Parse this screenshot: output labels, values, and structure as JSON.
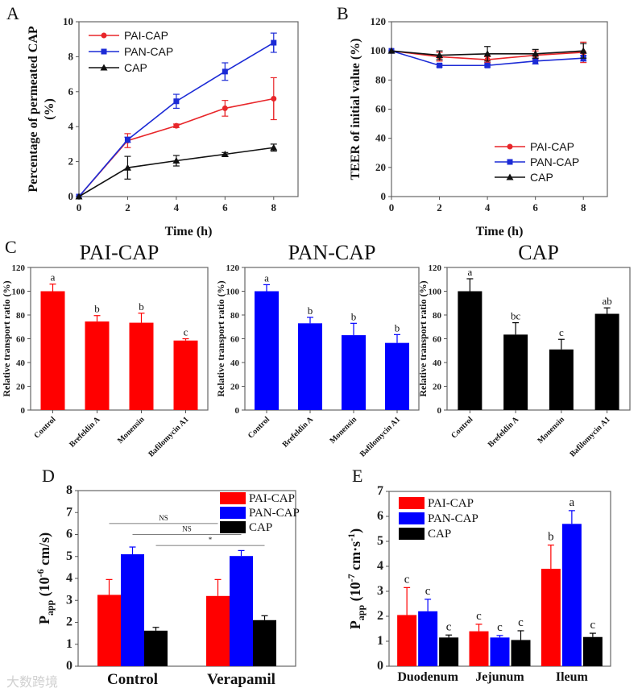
{
  "watermark": "大数跨境",
  "chart_data": [
    {
      "panel": "A",
      "type": "line",
      "xlabel": "Time (h)",
      "ylabel": [
        "Percentage of permeated CAP",
        "(%)"
      ],
      "x": [
        0,
        2,
        4,
        6,
        8
      ],
      "xticks": [
        "0",
        "2",
        "4",
        "6",
        "8"
      ],
      "xlim": [
        0,
        9
      ],
      "ylim": [
        0,
        10
      ],
      "yticks": [
        "0",
        "2",
        "4",
        "6",
        "8",
        "10"
      ],
      "ytick_values": [
        0,
        2,
        4,
        6,
        8,
        10
      ],
      "legend": "top-left",
      "series": [
        {
          "name": "PAI-CAP",
          "color": "#e8262a",
          "marker": "circle",
          "values": [
            0,
            3.2,
            4.05,
            5.05,
            5.6
          ],
          "errors": [
            0,
            0.4,
            0.1,
            0.45,
            1.2
          ]
        },
        {
          "name": "PAN-CAP",
          "color": "#1c2bd6",
          "marker": "square",
          "values": [
            0,
            3.25,
            5.45,
            7.15,
            8.8
          ],
          "errors": [
            0,
            0.15,
            0.4,
            0.5,
            0.55
          ]
        },
        {
          "name": "CAP",
          "color": "#111111",
          "marker": "triangle",
          "values": [
            0,
            1.65,
            2.05,
            2.42,
            2.8
          ],
          "errors": [
            0,
            0.65,
            0.3,
            0.1,
            0.2
          ]
        }
      ]
    },
    {
      "panel": "B",
      "type": "line",
      "xlabel": "Time (h)",
      "ylabel": [
        "TEER of initial value (%)"
      ],
      "x": [
        0,
        2,
        4,
        6,
        8
      ],
      "xticks": [
        "0",
        "2",
        "4",
        "6",
        "8"
      ],
      "xlim": [
        0,
        9
      ],
      "ylim": [
        0,
        120
      ],
      "yticks": [
        "0",
        "20",
        "40",
        "60",
        "80",
        "100",
        "120"
      ],
      "ytick_values": [
        0,
        20,
        40,
        60,
        80,
        100,
        120
      ],
      "legend": "bottom-right",
      "series": [
        {
          "name": "PAI-CAP",
          "color": "#e8262a",
          "marker": "circle",
          "values": [
            100,
            96,
            94,
            97,
            99
          ],
          "errors": [
            0,
            3,
            2,
            3,
            7
          ]
        },
        {
          "name": "PAN-CAP",
          "color": "#1c2bd6",
          "marker": "square",
          "values": [
            100,
            90,
            90,
            93,
            95
          ],
          "errors": [
            0,
            1,
            1,
            2,
            2
          ]
        },
        {
          "name": "CAP",
          "color": "#111111",
          "marker": "triangle",
          "values": [
            100,
            97,
            98,
            98,
            100
          ],
          "errors": [
            0,
            3,
            5,
            3,
            5
          ]
        }
      ]
    },
    {
      "panel": "C",
      "type": "bar",
      "title": "PAI-CAP",
      "color": "#ff0000",
      "ylabel": [
        "Relative transport ratio (%)"
      ],
      "categories": [
        "Control",
        "Brefeldin A",
        "Monensin",
        "Bafilomycin A1"
      ],
      "values": [
        100,
        74.5,
        73.5,
        58.5
      ],
      "errors": [
        6,
        5,
        8,
        1.5
      ],
      "letters": [
        "a",
        "b",
        "b",
        "c"
      ],
      "ylim": [
        0,
        120
      ],
      "yticks": [
        "0",
        "20",
        "40",
        "60",
        "80",
        "100",
        "120"
      ],
      "ytick_values": [
        0,
        20,
        40,
        60,
        80,
        100,
        120
      ]
    },
    {
      "panel": "",
      "type": "bar",
      "title": "PAN-CAP",
      "color": "#0000ff",
      "ylabel": [
        "Relative transport ratio (%)"
      ],
      "categories": [
        "Control",
        "Brefeldin A",
        "Monensin",
        "Bafilomycin A1"
      ],
      "values": [
        100,
        73,
        63,
        56.5
      ],
      "errors": [
        5.5,
        5,
        10,
        7
      ],
      "letters": [
        "a",
        "b",
        "b",
        "b"
      ],
      "ylim": [
        0,
        120
      ],
      "yticks": [
        "0",
        "20",
        "40",
        "60",
        "80",
        "100",
        "120"
      ],
      "ytick_values": [
        0,
        20,
        40,
        60,
        80,
        100,
        120
      ]
    },
    {
      "panel": "",
      "type": "bar",
      "title": "CAP",
      "color": "#000000",
      "ylabel": [
        "Relative transport ratio (%)"
      ],
      "categories": [
        "Control",
        "Brefeldin A",
        "Monensin",
        "Bafilomycin A1"
      ],
      "values": [
        100,
        63.5,
        51,
        81
      ],
      "errors": [
        10.5,
        10,
        8.5,
        5
      ],
      "letters": [
        "a",
        "bc",
        "c",
        "ab"
      ],
      "ylim": [
        0,
        120
      ],
      "yticks": [
        "0",
        "20",
        "40",
        "60",
        "80",
        "100",
        "120"
      ],
      "ytick_values": [
        0,
        20,
        40,
        60,
        80,
        100,
        120
      ]
    },
    {
      "panel": "D",
      "type": "grouped-bar",
      "ylabel": {
        "main": "P",
        "sub": "app",
        "pre": " (10",
        "sup": "-6",
        "post": " cm/s)"
      },
      "categories": [
        "Control",
        "Verapamil"
      ],
      "ylim": [
        0,
        8
      ],
      "yticks": [
        "0",
        "1",
        "2",
        "3",
        "4",
        "5",
        "6",
        "7",
        "8"
      ],
      "ytick_values": [
        0,
        1,
        2,
        3,
        4,
        5,
        6,
        7,
        8
      ],
      "legend": "top-right",
      "series": [
        {
          "name": "PAI-CAP",
          "color": "#ff0000",
          "values": [
            3.25,
            3.2
          ],
          "errors": [
            0.7,
            0.75
          ]
        },
        {
          "name": "PAN-CAP",
          "color": "#0000ff",
          "values": [
            5.1,
            5.02
          ],
          "errors": [
            0.33,
            0.25
          ]
        },
        {
          "name": "CAP",
          "color": "#000000",
          "values": [
            1.62,
            2.1
          ],
          "errors": [
            0.15,
            0.2
          ]
        }
      ],
      "significance": [
        {
          "label": "NS",
          "series": 0,
          "y": 6.5
        },
        {
          "label": "NS",
          "series": 1,
          "y": 6.0
        },
        {
          "label": "*",
          "series": 2,
          "y": 5.5
        }
      ]
    },
    {
      "panel": "E",
      "type": "grouped-bar",
      "ylabel": {
        "main": "P",
        "sub": "app",
        "pre": " (10",
        "sup": "-7",
        "post": " cm·s",
        "sup2": "-1",
        "post2": ")"
      },
      "categories": [
        "Duodenum",
        "Jejunum",
        "Ileum"
      ],
      "ylim": [
        0,
        7
      ],
      "yticks": [
        "0",
        "1",
        "2",
        "3",
        "4",
        "5",
        "6",
        "7"
      ],
      "ytick_values": [
        0,
        1,
        2,
        3,
        4,
        5,
        6,
        7
      ],
      "legend": "top-left",
      "series": [
        {
          "name": "PAI-CAP",
          "color": "#ff0000",
          "values": [
            2.05,
            1.4,
            3.9
          ],
          "errors": [
            1.1,
            0.28,
            0.95
          ],
          "letters": [
            "c",
            "c",
            "b"
          ]
        },
        {
          "name": "PAN-CAP",
          "color": "#0000ff",
          "values": [
            2.2,
            1.15,
            5.7
          ],
          "errors": [
            0.48,
            0.08,
            0.53
          ],
          "letters": [
            "c",
            "c",
            "a"
          ]
        },
        {
          "name": "CAP",
          "color": "#000000",
          "values": [
            1.15,
            1.05,
            1.17
          ],
          "errors": [
            0.1,
            0.37,
            0.15
          ],
          "letters": [
            "c",
            "c",
            "c"
          ]
        }
      ]
    }
  ]
}
